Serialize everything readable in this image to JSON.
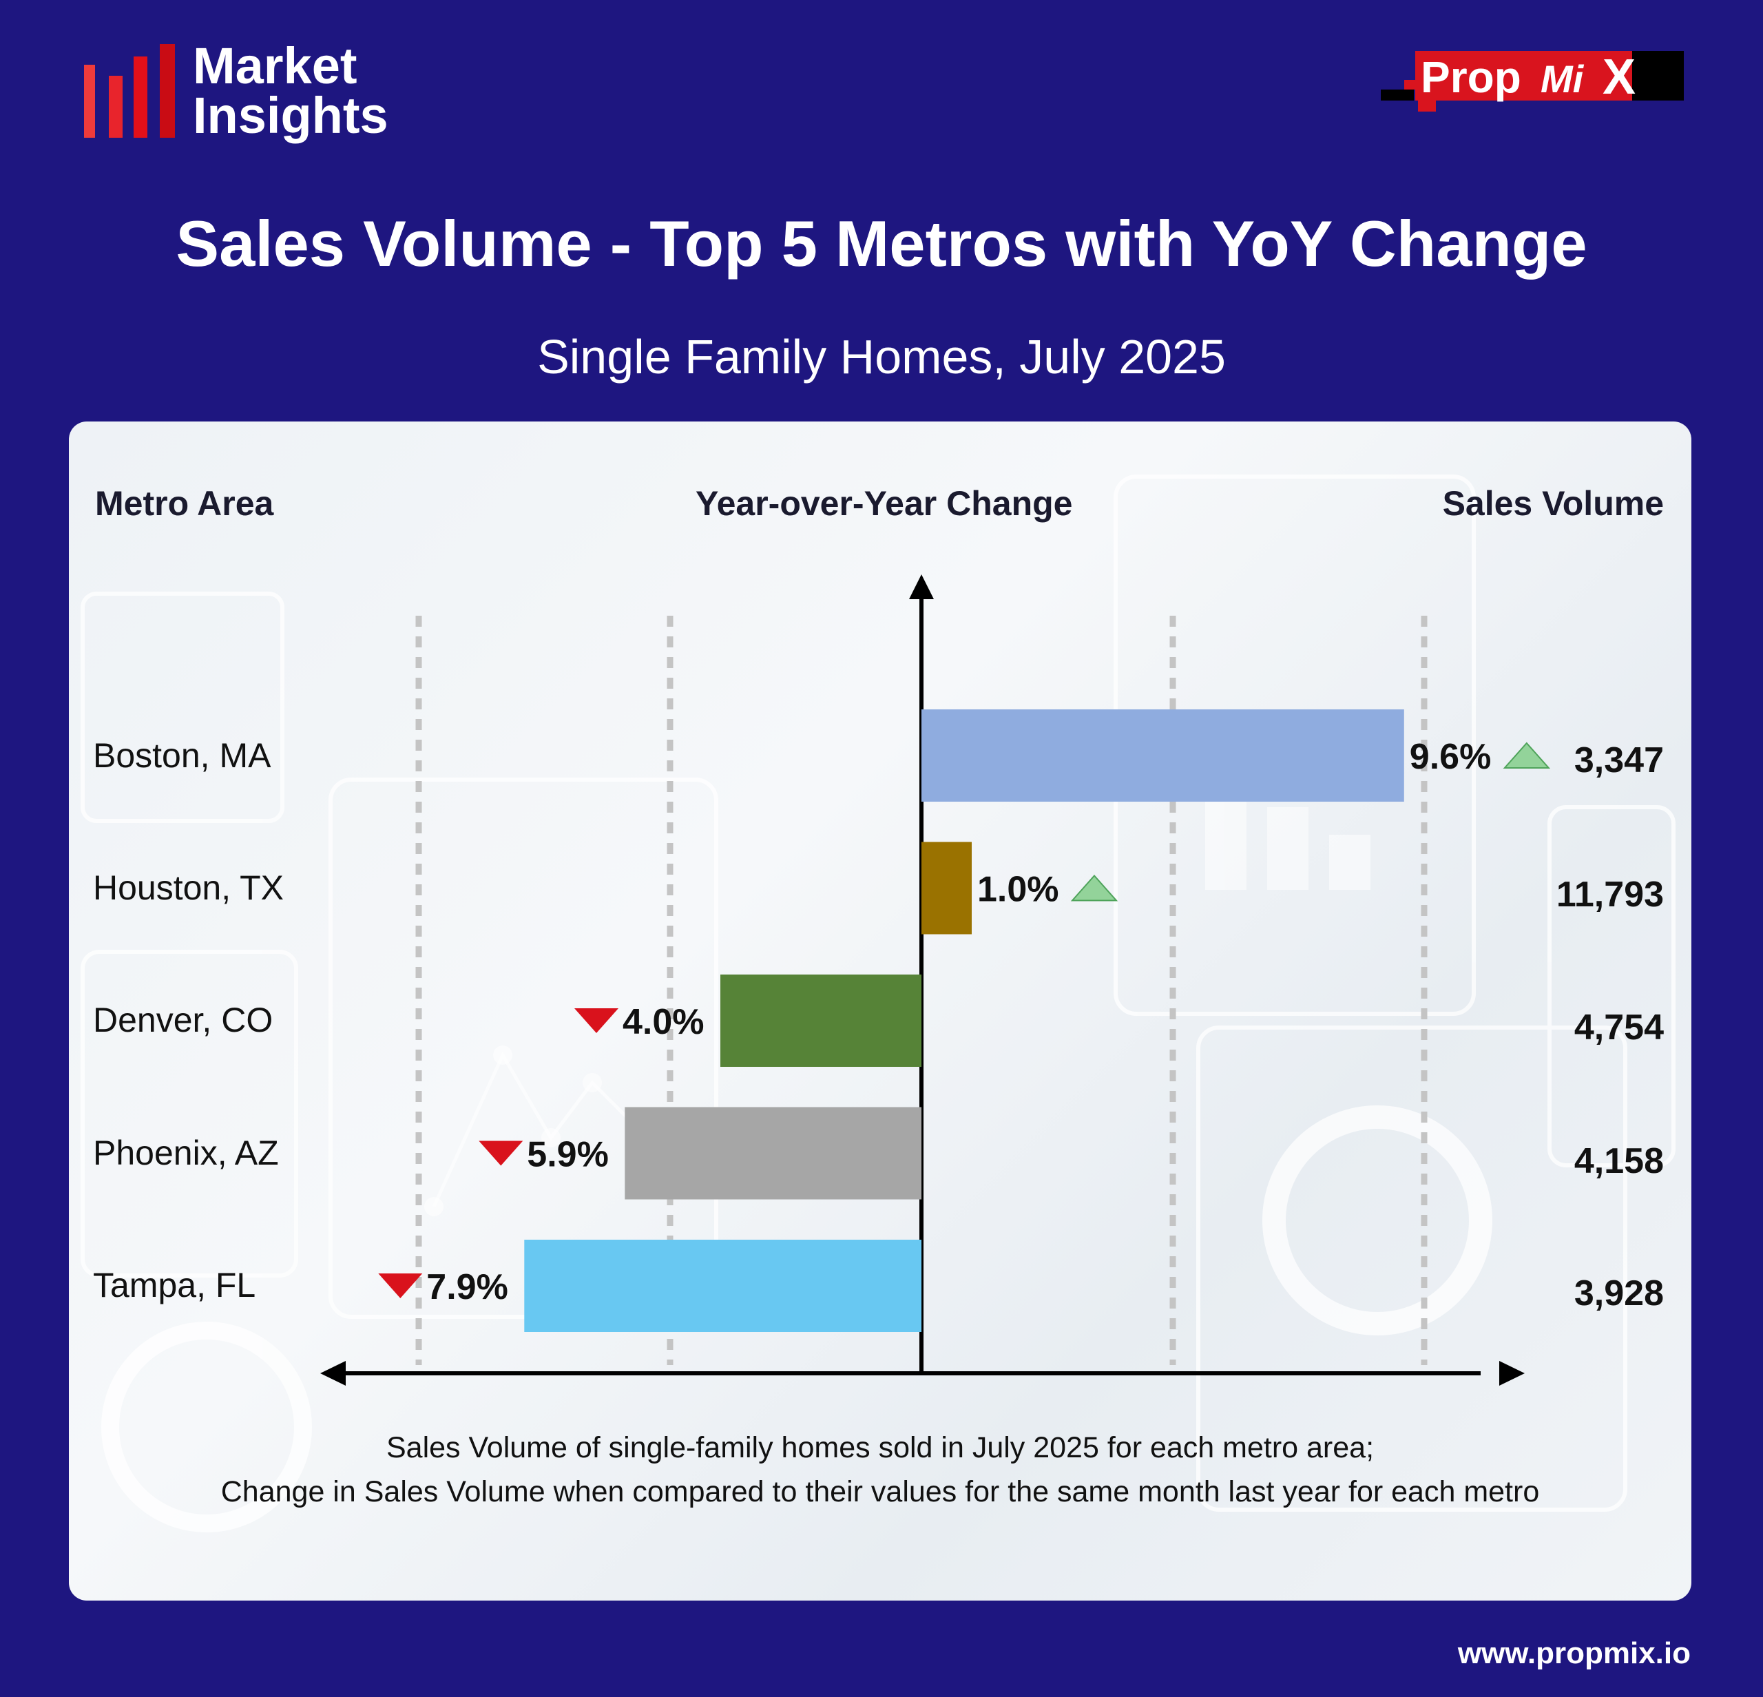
{
  "header": {
    "brand_line1": "Market",
    "brand_line2": "Insights",
    "logo_text_prop": "Prop",
    "logo_text_mi": "Mi",
    "logo_text_x": "X"
  },
  "title": "Sales Volume - Top 5 Metros with YoY Change",
  "subtitle": "Single Family Homes, July 2025",
  "columns": {
    "metro": "Metro Area",
    "change": "Year-over-Year Change",
    "volume": "Sales Volume"
  },
  "chart_data": {
    "type": "bar",
    "orientation": "horizontal",
    "categories": [
      "Boston, MA",
      "Houston, TX",
      "Denver, CO",
      "Phoenix, AZ",
      "Tampa, FL"
    ],
    "values": [
      9.6,
      1.0,
      -4.0,
      -5.9,
      -7.9
    ],
    "labels": [
      "9.6%",
      "1.0%",
      "4.0%",
      "5.9%",
      "7.9%"
    ],
    "sales_volume": [
      "3,347",
      "11,793",
      "4,754",
      "4,158",
      "3,928"
    ],
    "colors": [
      "#8facdf",
      "#9a7200",
      "#568337",
      "#a6a6a6",
      "#68c8f2"
    ],
    "xlim": [
      -10,
      10
    ],
    "gridlines": [
      -10,
      -5,
      5,
      10
    ],
    "up_color": "#93d39a",
    "down_color": "#d9121c"
  },
  "footnote": {
    "line1": "Sales Volume of single-family homes sold in July 2025 for each metro area;",
    "line2": "Change in Sales Volume when compared to their values for the same month last year for each metro"
  },
  "website": "www.propmix.io"
}
